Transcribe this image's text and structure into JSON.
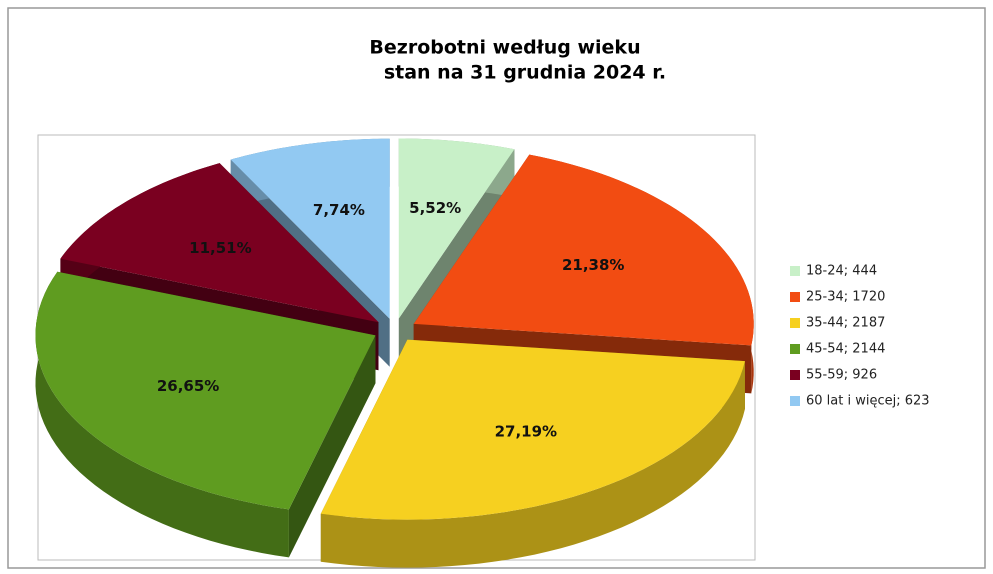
{
  "chart_data": {
    "type": "pie",
    "title": "Bezrobotni według wieku",
    "subtitle": "stan na 31 grudnia 2024 r.",
    "categories": [
      "18-24;  444",
      "25-34; 1720",
      "35-44; 2187",
      "45-54; 2144",
      "55-59; 926",
      "60 lat i więcej; 623"
    ],
    "values": [
      5.52,
      21.38,
      27.19,
      26.65,
      11.51,
      7.74
    ],
    "value_labels": [
      "5,52%",
      "21,38%",
      "27,19%",
      "26,65%",
      "11,51%",
      "7,74%"
    ],
    "colors": [
      "#c8f0c8",
      "#f24c12",
      "#f6d020",
      "#5f9c20",
      "#7a0020",
      "#92c9f2"
    ],
    "legend": "right"
  }
}
